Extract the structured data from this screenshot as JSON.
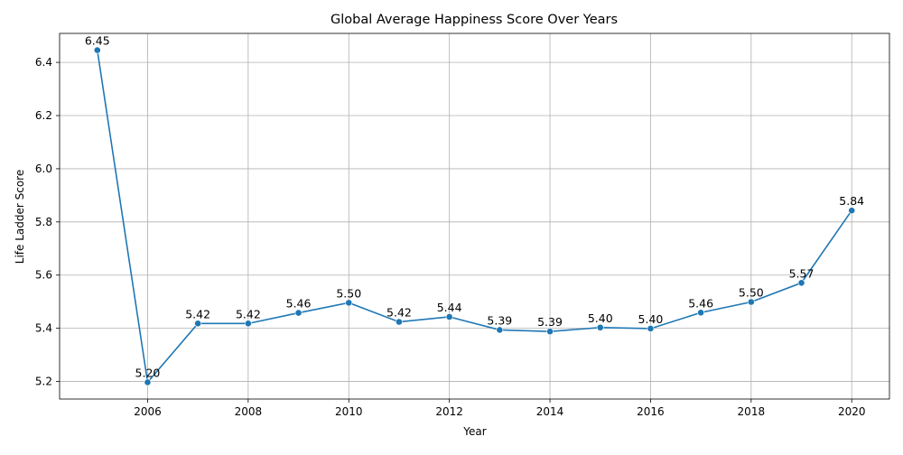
{
  "chart_data": {
    "type": "line",
    "title": "Global Average Happiness Score Over Years",
    "xlabel": "Year",
    "ylabel": "Life Ladder Score",
    "x": [
      2005,
      2006,
      2007,
      2008,
      2009,
      2010,
      2011,
      2012,
      2013,
      2014,
      2015,
      2016,
      2017,
      2018,
      2019,
      2020
    ],
    "series": [
      {
        "values": [
          6.446,
          5.197,
          5.418,
          5.418,
          5.458,
          5.496,
          5.424,
          5.443,
          5.394,
          5.388,
          5.403,
          5.399,
          5.459,
          5.499,
          5.571,
          5.843
        ],
        "labels": [
          "6.45",
          "5.20",
          "5.42",
          "5.42",
          "5.46",
          "5.50",
          "5.42",
          "5.44",
          "5.39",
          "5.39",
          "5.40",
          "5.40",
          "5.46",
          "5.50",
          "5.57",
          "5.84"
        ],
        "color": "#1f77b4",
        "marker": "circle"
      }
    ],
    "xticks": [
      2006,
      2008,
      2010,
      2012,
      2014,
      2016,
      2018,
      2020
    ],
    "yticks": [
      5.2,
      5.4,
      5.6,
      5.8,
      6.0,
      6.2,
      6.4
    ],
    "xlim": [
      2004.25,
      2020.75
    ],
    "ylim": [
      5.134,
      6.509
    ],
    "grid": true,
    "legend": "none"
  }
}
